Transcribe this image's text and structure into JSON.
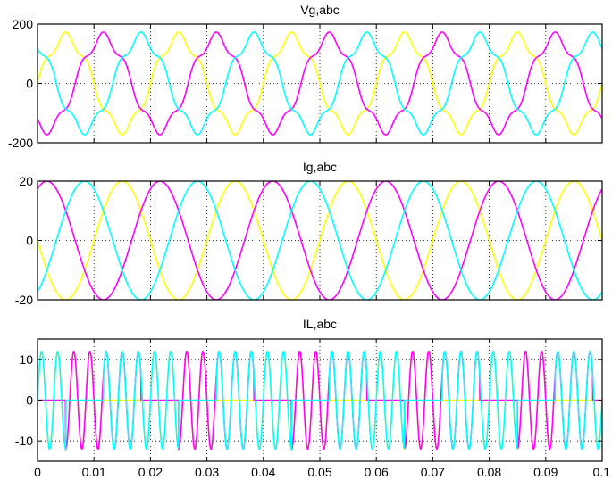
{
  "chart_data": [
    {
      "type": "line",
      "title": "Vg,abc",
      "xlabel": "",
      "ylabel": "",
      "xlim": [
        0,
        0.1
      ],
      "ylim": [
        -200,
        200
      ],
      "yticks": [
        200,
        0,
        -200
      ],
      "ytick_labels": [
        "200",
        "0",
        "-200"
      ],
      "xticks": [
        0,
        0.01,
        0.02,
        0.03,
        0.04,
        0.05,
        0.06,
        0.07,
        0.08,
        0.09,
        0.1
      ],
      "show_xtick_labels": false,
      "grid": true,
      "legend": "none",
      "series": [
        {
          "color": "#ffff00",
          "amplitude": 155,
          "frequency_hz": 50,
          "phase_deg": 0,
          "harmonic5_amplitude": 18
        },
        {
          "color": "#ff00ff",
          "amplitude": 155,
          "frequency_hz": 50,
          "phase_deg": -120,
          "harmonic5_amplitude": 18
        },
        {
          "color": "#00ffff",
          "amplitude": 155,
          "frequency_hz": 50,
          "phase_deg": 120,
          "harmonic5_amplitude": 18
        }
      ]
    },
    {
      "type": "line",
      "title": "Ig,abc",
      "xlabel": "",
      "ylabel": "",
      "xlim": [
        0,
        0.1
      ],
      "ylim": [
        -20,
        20
      ],
      "yticks": [
        20,
        0,
        -20
      ],
      "ytick_labels": [
        "20",
        "0",
        "-20"
      ],
      "xticks": [
        0,
        0.01,
        0.02,
        0.03,
        0.04,
        0.05,
        0.06,
        0.07,
        0.08,
        0.09,
        0.1
      ],
      "show_xtick_labels": false,
      "grid": true,
      "legend": "none",
      "series": [
        {
          "color": "#ffff00",
          "amplitude": 20,
          "frequency_hz": 50,
          "phase_deg": -180
        },
        {
          "color": "#ff00ff",
          "amplitude": 20,
          "frequency_hz": 50,
          "phase_deg": 60
        },
        {
          "color": "#00ffff",
          "amplitude": 20,
          "frequency_hz": 50,
          "phase_deg": -60
        }
      ]
    },
    {
      "type": "line",
      "title": "IL,abc",
      "xlabel": "",
      "ylabel": "",
      "xlim": [
        0,
        0.1
      ],
      "ylim": [
        -15,
        15
      ],
      "yticks": [
        10,
        0,
        -10
      ],
      "ytick_labels": [
        "10",
        "0",
        "-10"
      ],
      "xticks": [
        0,
        0.01,
        0.02,
        0.03,
        0.04,
        0.05,
        0.06,
        0.07,
        0.08,
        0.09,
        0.1
      ],
      "xtick_labels": [
        "0",
        "0.01",
        "0.02",
        "0.03",
        "0.04",
        "0.05",
        "0.06",
        "0.07",
        "0.08",
        "0.09",
        "0.1"
      ],
      "show_xtick_labels": true,
      "grid": true,
      "legend": "none",
      "series": [
        {
          "color": "#ffff00",
          "amplitude": 12,
          "frequency_hz": 50,
          "carrier_hz": 350,
          "phase_deg": 0,
          "burst_phase_deg": 0
        },
        {
          "color": "#ff00ff",
          "amplitude": 12,
          "frequency_hz": 50,
          "carrier_hz": 350,
          "phase_deg": 0,
          "burst_phase_deg": -120
        },
        {
          "color": "#00ffff",
          "amplitude": 12,
          "frequency_hz": 50,
          "carrier_hz": 350,
          "phase_deg": 0,
          "burst_phase_deg": 120
        }
      ]
    }
  ]
}
